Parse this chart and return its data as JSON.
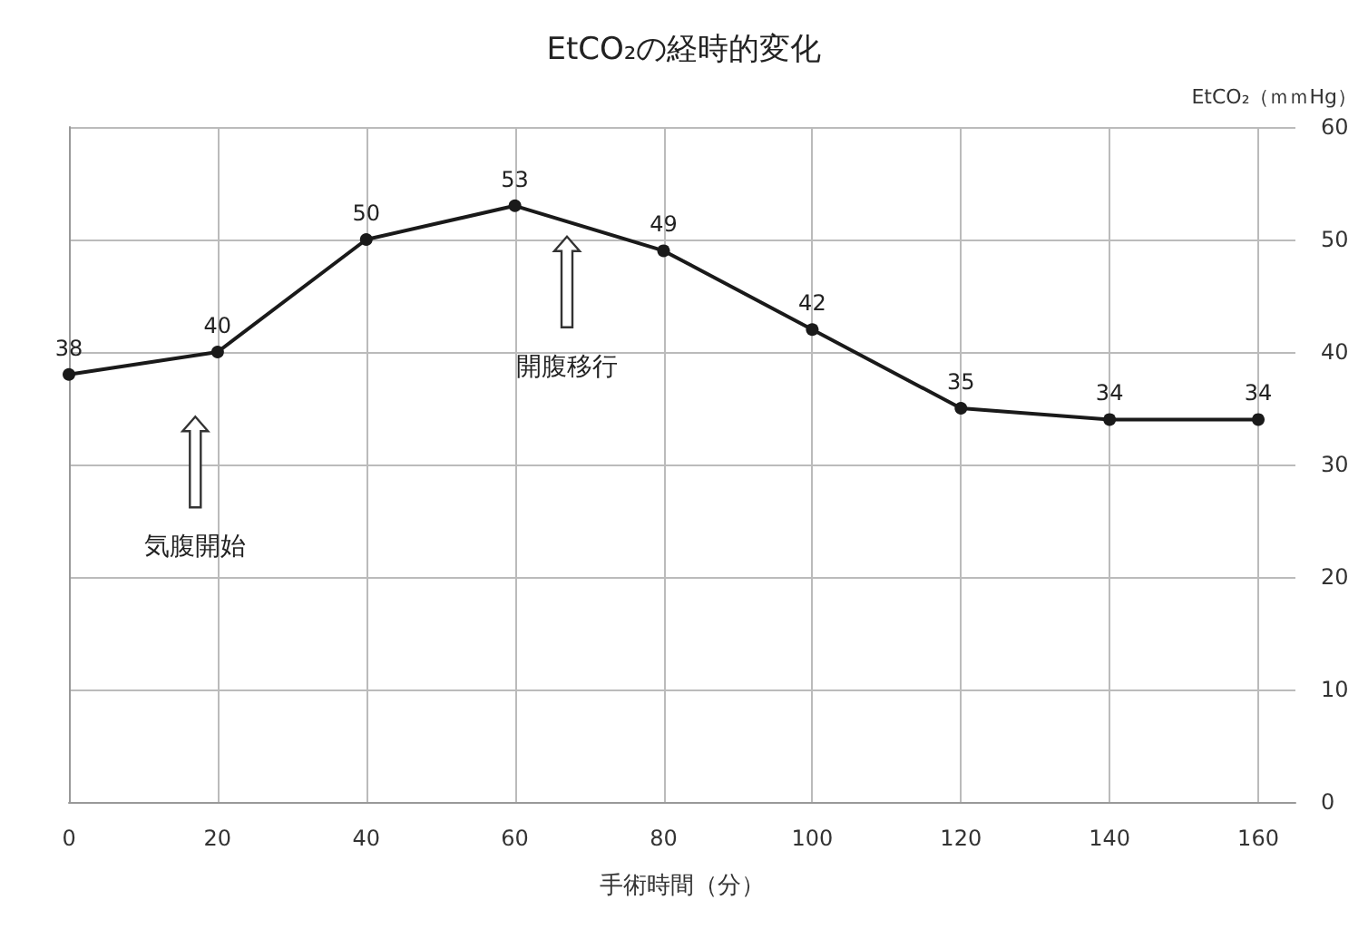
{
  "chart_data": {
    "type": "line",
    "title": "EtCO₂の経時的変化",
    "xlabel": "手術時間（分）",
    "ylabel": "EtCO₂（ｍｍHg）",
    "x": [
      0,
      20,
      40,
      60,
      80,
      100,
      120,
      140,
      160
    ],
    "series": [
      {
        "color": "#1a1a1a",
        "values": [
          38,
          40,
          50,
          53,
          49,
          42,
          35,
          34,
          34
        ]
      }
    ],
    "xlim": [
      0,
      165
    ],
    "xticks": [
      0,
      20,
      40,
      60,
      80,
      100,
      120,
      140,
      160
    ],
    "ylim": [
      0,
      60
    ],
    "yticks": [
      0,
      10,
      20,
      30,
      40,
      50,
      60
    ],
    "grid": true,
    "marker": "circle",
    "line_style": "solid",
    "data_labels": true,
    "annotations": [
      "気腹開始",
      "開腹移行"
    ]
  }
}
